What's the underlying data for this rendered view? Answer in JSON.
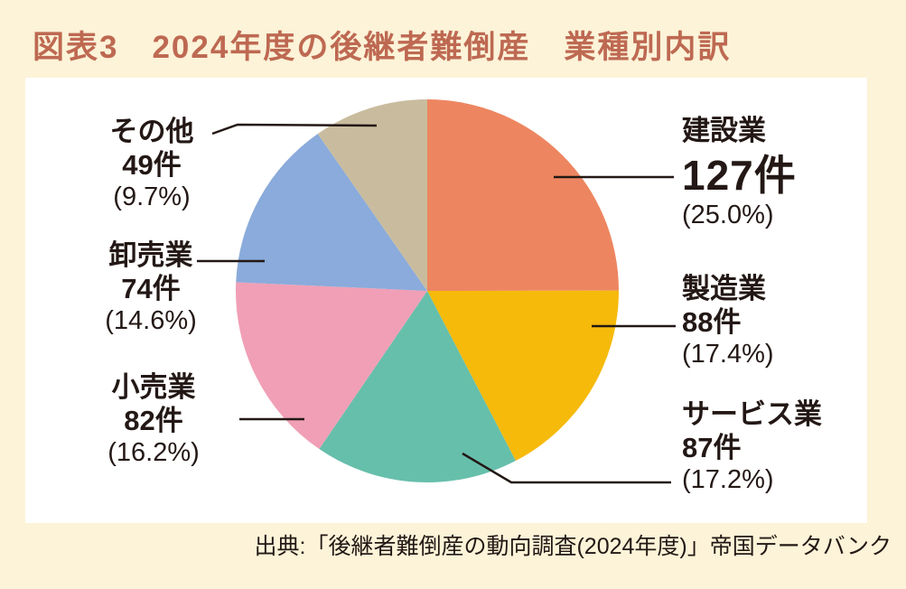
{
  "page": {
    "background": "#FCF3D8",
    "panel_background": "#FFFFFF",
    "title_color": "#BE6952",
    "text_color": "#231815"
  },
  "header": {
    "title": "図表3　2024年度の後継者難倒産　業種別内訳"
  },
  "footer": {
    "source": "出典:「後継者難倒産の動向調査(2024年度)」帝国データバンク"
  },
  "chart_data": {
    "type": "pie",
    "title": "2024年度の後継者難倒産　業種別内訳",
    "unit": "件",
    "start_angle_deg": 0,
    "direction": "clockwise",
    "labels_layout": "callout",
    "slices": [
      {
        "label": "建設業",
        "value": 127,
        "percent": 25.0,
        "count_label": "127件",
        "pct_label": "(25.0%)",
        "color": "#ED8660",
        "emphasized": true
      },
      {
        "label": "製造業",
        "value": 88,
        "percent": 17.4,
        "count_label": "88件",
        "pct_label": "(17.4%)",
        "color": "#F6BA0B",
        "emphasized": false
      },
      {
        "label": "サービス業",
        "value": 87,
        "percent": 17.2,
        "count_label": "87件",
        "pct_label": "(17.2%)",
        "color": "#66BFAB",
        "emphasized": false
      },
      {
        "label": "小売業",
        "value": 82,
        "percent": 16.2,
        "count_label": "82件",
        "pct_label": "(16.2%)",
        "color": "#F09FB6",
        "emphasized": false
      },
      {
        "label": "卸売業",
        "value": 74,
        "percent": 14.6,
        "count_label": "74件",
        "pct_label": "(14.6%)",
        "color": "#8AABDB",
        "emphasized": false
      },
      {
        "label": "その他",
        "value": 49,
        "percent": 9.7,
        "count_label": "49件",
        "pct_label": "(9.7%)",
        "color": "#C9BC9E",
        "emphasized": false
      }
    ]
  }
}
